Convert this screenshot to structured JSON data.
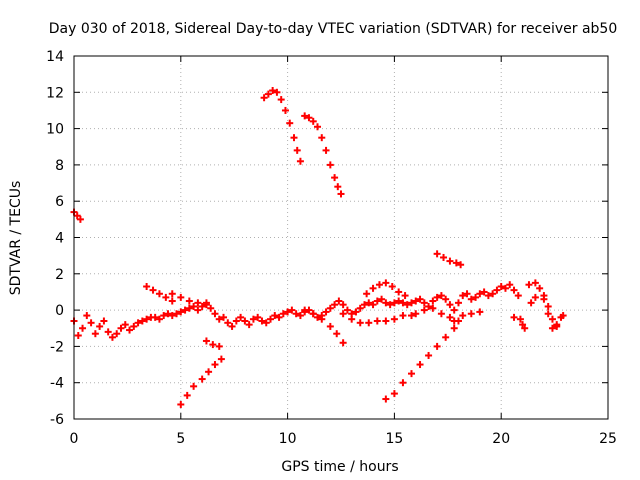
{
  "chart_data": {
    "type": "scatter",
    "title": "Day 030 of 2018, Sidereal Day-to-day VTEC variation (SDTVAR) for receiver ab50",
    "xlabel": "GPS time / hours",
    "ylabel": "SDTVAR / TECUs",
    "xlim": [
      0,
      25
    ],
    "ylim": [
      -6,
      14
    ],
    "xticks": [
      "0",
      "5",
      "10",
      "15",
      "20",
      "25"
    ],
    "yticks": [
      "-6",
      "-4",
      "-2",
      "0",
      "2",
      "4",
      "6",
      "8",
      "10",
      "12",
      "14"
    ],
    "grid": true,
    "marker": "+",
    "color": "#ff0000",
    "series": [
      {
        "points": [
          [
            0.0,
            5.4
          ],
          [
            0.15,
            5.2
          ],
          [
            0.3,
            5.0
          ],
          [
            8.9,
            11.7
          ],
          [
            9.1,
            11.9
          ],
          [
            9.3,
            12.1
          ],
          [
            9.5,
            12.0
          ],
          [
            9.7,
            11.6
          ],
          [
            9.9,
            11.0
          ],
          [
            10.1,
            10.3
          ],
          [
            10.3,
            9.5
          ],
          [
            10.45,
            8.8
          ],
          [
            10.6,
            8.2
          ],
          [
            10.8,
            10.7
          ],
          [
            11.0,
            10.6
          ],
          [
            11.2,
            10.4
          ],
          [
            11.4,
            10.1
          ],
          [
            11.6,
            9.5
          ],
          [
            11.8,
            8.8
          ],
          [
            12.0,
            8.0
          ],
          [
            12.2,
            7.3
          ],
          [
            12.35,
            6.8
          ],
          [
            12.5,
            6.4
          ],
          [
            17.0,
            3.1
          ],
          [
            17.3,
            2.9
          ],
          [
            17.6,
            2.7
          ],
          [
            17.9,
            2.6
          ],
          [
            18.1,
            2.5
          ],
          [
            5.0,
            -5.2
          ],
          [
            5.3,
            -4.7
          ],
          [
            5.6,
            -4.2
          ],
          [
            6.0,
            -3.8
          ],
          [
            6.3,
            -3.4
          ],
          [
            6.6,
            -3.0
          ],
          [
            6.9,
            -2.7
          ],
          [
            6.2,
            -1.7
          ],
          [
            6.5,
            -1.9
          ],
          [
            6.8,
            -2.0
          ],
          [
            14.6,
            -4.9
          ],
          [
            15.0,
            -4.6
          ],
          [
            15.4,
            -4.0
          ],
          [
            15.8,
            -3.5
          ],
          [
            16.2,
            -3.0
          ],
          [
            16.6,
            -2.5
          ],
          [
            17.0,
            -2.0
          ],
          [
            17.4,
            -1.5
          ],
          [
            17.8,
            -1.0
          ],
          [
            0.0,
            -0.6
          ],
          [
            0.2,
            -1.4
          ],
          [
            0.4,
            -1.0
          ],
          [
            0.6,
            -0.3
          ],
          [
            0.8,
            -0.7
          ],
          [
            1.0,
            -1.3
          ],
          [
            1.2,
            -0.9
          ],
          [
            1.4,
            -0.6
          ],
          [
            1.6,
            -1.2
          ],
          [
            1.8,
            -1.5
          ],
          [
            2.0,
            -1.3
          ],
          [
            2.2,
            -1.0
          ],
          [
            2.4,
            -0.8
          ],
          [
            2.6,
            -1.1
          ],
          [
            2.8,
            -0.9
          ],
          [
            3.0,
            -0.7
          ],
          [
            3.2,
            -0.6
          ],
          [
            3.4,
            -0.5
          ],
          [
            3.6,
            -0.4
          ],
          [
            3.8,
            -0.4
          ],
          [
            4.0,
            -0.5
          ],
          [
            4.2,
            -0.3
          ],
          [
            4.4,
            -0.2
          ],
          [
            4.6,
            -0.3
          ],
          [
            4.8,
            -0.2
          ],
          [
            5.0,
            -0.1
          ],
          [
            5.2,
            0.0
          ],
          [
            5.4,
            0.1
          ],
          [
            5.6,
            0.2
          ],
          [
            5.8,
            0.0
          ],
          [
            6.0,
            0.2
          ],
          [
            6.2,
            0.3
          ],
          [
            6.4,
            0.1
          ],
          [
            6.6,
            -0.2
          ],
          [
            6.8,
            -0.5
          ],
          [
            7.0,
            -0.4
          ],
          [
            7.2,
            -0.7
          ],
          [
            7.4,
            -0.9
          ],
          [
            7.6,
            -0.6
          ],
          [
            7.8,
            -0.4
          ],
          [
            8.0,
            -0.6
          ],
          [
            8.2,
            -0.8
          ],
          [
            8.4,
            -0.5
          ],
          [
            8.6,
            -0.4
          ],
          [
            8.8,
            -0.6
          ],
          [
            9.0,
            -0.7
          ],
          [
            9.2,
            -0.5
          ],
          [
            9.4,
            -0.3
          ],
          [
            9.6,
            -0.4
          ],
          [
            9.8,
            -0.2
          ],
          [
            10.0,
            -0.1
          ],
          [
            10.2,
            0.0
          ],
          [
            10.4,
            -0.2
          ],
          [
            10.6,
            -0.3
          ],
          [
            10.8,
            -0.1
          ],
          [
            11.0,
            0.0
          ],
          [
            11.2,
            -0.2
          ],
          [
            11.4,
            -0.4
          ],
          [
            11.6,
            -0.3
          ],
          [
            11.8,
            -0.1
          ],
          [
            12.0,
            0.1
          ],
          [
            12.2,
            0.3
          ],
          [
            12.4,
            0.5
          ],
          [
            12.6,
            0.3
          ],
          [
            12.8,
            0.0
          ],
          [
            13.0,
            -0.2
          ],
          [
            13.2,
            -0.1
          ],
          [
            13.4,
            0.1
          ],
          [
            13.6,
            0.3
          ],
          [
            13.8,
            0.4
          ],
          [
            14.0,
            0.3
          ],
          [
            14.2,
            0.5
          ],
          [
            14.4,
            0.6
          ],
          [
            14.6,
            0.4
          ],
          [
            14.8,
            0.3
          ],
          [
            15.0,
            0.4
          ],
          [
            15.2,
            0.5
          ],
          [
            15.4,
            0.4
          ],
          [
            15.6,
            0.3
          ],
          [
            15.8,
            0.4
          ],
          [
            16.0,
            0.5
          ],
          [
            16.2,
            0.6
          ],
          [
            16.4,
            0.4
          ],
          [
            16.6,
            0.2
          ],
          [
            16.8,
            0.5
          ],
          [
            17.0,
            0.7
          ],
          [
            17.2,
            0.8
          ],
          [
            17.4,
            0.6
          ],
          [
            17.6,
            0.3
          ],
          [
            17.8,
            0.0
          ],
          [
            18.0,
            0.4
          ],
          [
            18.2,
            0.8
          ],
          [
            18.4,
            0.9
          ],
          [
            18.6,
            0.6
          ],
          [
            18.8,
            0.7
          ],
          [
            19.0,
            0.9
          ],
          [
            19.2,
            1.0
          ],
          [
            19.4,
            0.8
          ],
          [
            19.6,
            0.9
          ],
          [
            19.8,
            1.1
          ],
          [
            20.0,
            1.3
          ],
          [
            20.2,
            1.2
          ],
          [
            20.4,
            1.4
          ],
          [
            20.6,
            1.1
          ],
          [
            20.8,
            0.8
          ],
          [
            3.4,
            1.3
          ],
          [
            3.7,
            1.1
          ],
          [
            4.0,
            0.9
          ],
          [
            4.3,
            0.7
          ],
          [
            4.6,
            0.5
          ],
          [
            4.6,
            0.9
          ],
          [
            5.0,
            0.7
          ],
          [
            5.4,
            0.5
          ],
          [
            5.8,
            0.4
          ],
          [
            6.2,
            0.4
          ],
          [
            10.8,
            0.0
          ],
          [
            11.2,
            -0.2
          ],
          [
            11.6,
            -0.5
          ],
          [
            12.0,
            -0.9
          ],
          [
            12.3,
            -1.3
          ],
          [
            12.6,
            -1.8
          ],
          [
            12.6,
            -0.2
          ],
          [
            13.0,
            -0.5
          ],
          [
            13.4,
            -0.7
          ],
          [
            13.8,
            -0.7
          ],
          [
            14.2,
            -0.6
          ],
          [
            14.6,
            -0.6
          ],
          [
            15.0,
            -0.5
          ],
          [
            15.4,
            -0.3
          ],
          [
            15.8,
            -0.3
          ],
          [
            13.7,
            0.9
          ],
          [
            14.0,
            1.2
          ],
          [
            14.3,
            1.4
          ],
          [
            14.6,
            1.5
          ],
          [
            14.9,
            1.3
          ],
          [
            15.2,
            1.0
          ],
          [
            15.5,
            0.8
          ],
          [
            16.0,
            -0.2
          ],
          [
            16.4,
            0.0
          ],
          [
            16.8,
            0.1
          ],
          [
            17.2,
            -0.2
          ],
          [
            17.6,
            -0.4
          ],
          [
            18.0,
            -0.6
          ],
          [
            17.8,
            -0.6
          ],
          [
            18.2,
            -0.3
          ],
          [
            18.6,
            -0.2
          ],
          [
            19.0,
            -0.1
          ],
          [
            20.6,
            -0.4
          ],
          [
            20.9,
            -0.5
          ],
          [
            21.0,
            -0.8
          ],
          [
            21.1,
            -1.0
          ],
          [
            21.4,
            0.4
          ],
          [
            21.6,
            0.7
          ],
          [
            21.8,
            1.2
          ],
          [
            22.0,
            0.8
          ],
          [
            22.2,
            0.2
          ],
          [
            22.4,
            -0.5
          ],
          [
            22.6,
            -0.8
          ],
          [
            22.8,
            -0.4
          ],
          [
            21.3,
            1.4
          ],
          [
            21.6,
            1.5
          ],
          [
            22.0,
            0.6
          ],
          [
            22.2,
            -0.2
          ],
          [
            22.4,
            -1.0
          ],
          [
            22.6,
            -0.9
          ],
          [
            22.9,
            -0.3
          ]
        ]
      }
    ]
  }
}
